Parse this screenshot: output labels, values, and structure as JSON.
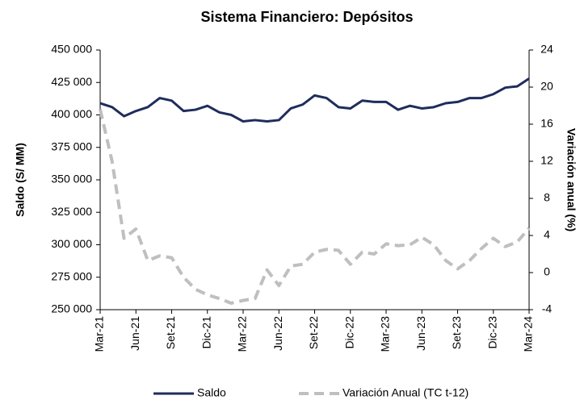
{
  "chart_data": {
    "type": "line",
    "title": "Sistema Financiero: Depósitos",
    "ylabel": "Saldo (S/ MM)",
    "y2label": "Variación anual (%)",
    "categories": [
      "Mar-21",
      null,
      null,
      "Jun-21",
      null,
      null,
      "Set-21",
      null,
      null,
      "Dic-21",
      null,
      null,
      "Mar-22",
      null,
      null,
      "Jun-22",
      null,
      null,
      "Set-22",
      null,
      null,
      "Dic-22",
      null,
      null,
      "Mar-23",
      null,
      null,
      "Jun-23",
      null,
      null,
      "Set-23",
      null,
      null,
      "Dic-23",
      null,
      null,
      "Mar-24"
    ],
    "series": [
      {
        "name": "Saldo",
        "color": "#1f2d5c",
        "dash": false,
        "values": [
          409000,
          406000,
          399000,
          403000,
          406000,
          413000,
          411000,
          403000,
          404000,
          407000,
          402000,
          400000,
          395000,
          396000,
          395000,
          396000,
          405000,
          408000,
          415000,
          413000,
          406000,
          405000,
          411000,
          410000,
          410000,
          404000,
          407000,
          405000,
          406000,
          409000,
          410000,
          413000,
          413000,
          416000,
          421000,
          422000,
          428000
        ]
      },
      {
        "name": "Variación Anual (TC t-12)",
        "color": "#bfbfbf",
        "dash": true,
        "axis": "y2",
        "values": [
          17.6,
          12,
          3.7,
          4.7,
          1.3,
          1.8,
          1.6,
          -0.5,
          -1.8,
          -2.4,
          -2.8,
          -3.3,
          -3.0,
          -2.8,
          0.3,
          -1.4,
          0.7,
          0.9,
          2.2,
          2.5,
          2.4,
          0.9,
          2.2,
          2.0,
          3.1,
          2.9,
          3.0,
          3.8,
          3.0,
          1.3,
          0.4,
          1.3,
          2.6,
          3.7,
          2.8,
          3.3,
          4.8
        ]
      }
    ],
    "ylim": [
      250000,
      450000
    ],
    "yticks": [
      {
        "value": 250000,
        "label": "250 000"
      },
      {
        "value": 275000,
        "label": "275 000"
      },
      {
        "value": 300000,
        "label": "300 000"
      },
      {
        "value": 325000,
        "label": "325 000"
      },
      {
        "value": 350000,
        "label": "350 000"
      },
      {
        "value": 375000,
        "label": "375 000"
      },
      {
        "value": 400000,
        "label": "400 000"
      },
      {
        "value": 425000,
        "label": "425 000"
      },
      {
        "value": 450000,
        "label": "450 000"
      }
    ],
    "y2lim": [
      -4,
      24
    ],
    "y2ticks": [
      -4,
      0,
      4,
      8,
      12,
      16,
      20,
      24
    ],
    "legend": "bottom"
  }
}
